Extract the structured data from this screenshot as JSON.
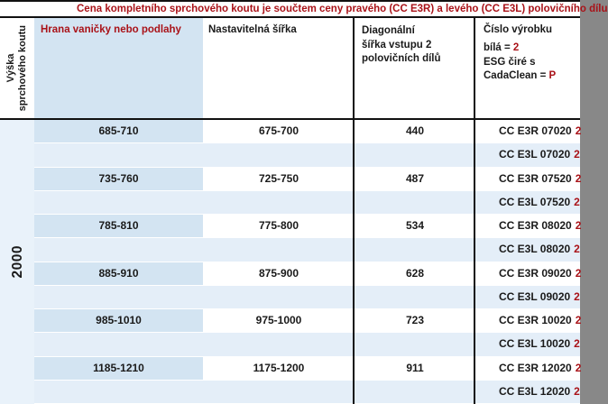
{
  "title": "Cena kompletního sprchového koutu je součtem ceny pravého (CC E3R) a levého (CC E3L) polovičního dílu",
  "header": {
    "height_label": "Výška\nsprchového koutu",
    "edge": "Hrana vaničky nebo podlahy",
    "width": "Nastavitelná šířka",
    "diagonal_lines": {
      "0": "Diagonální",
      "1": "šířka vstupu 2",
      "2": "polovičních dílů"
    },
    "product": "Číslo výrobku",
    "white_label": "bílá = ",
    "white_code": "2",
    "glass_line": "ESG čiré s",
    "glass_label": "CadaClean = ",
    "glass_code": "P"
  },
  "height_value": "2000",
  "code_suffix": "2",
  "rows": [
    {
      "edge": "685-710",
      "width": "675-700",
      "diagonal": "440",
      "code_r": "CC E3R 07020",
      "code_l": "CC E3L 07020"
    },
    {
      "edge": "735-760",
      "width": "725-750",
      "diagonal": "487",
      "code_r": "CC E3R 07520",
      "code_l": "CC E3L 07520"
    },
    {
      "edge": "785-810",
      "width": "775-800",
      "diagonal": "534",
      "code_r": "CC E3R 08020",
      "code_l": "CC E3L 08020"
    },
    {
      "edge": "885-910",
      "width": "875-900",
      "diagonal": "628",
      "code_r": "CC E3R 09020",
      "code_l": "CC E3L 09020"
    },
    {
      "edge": "985-1010",
      "width": "975-1000",
      "diagonal": "723",
      "code_r": "CC E3R 10020",
      "code_l": "CC E3L 10020"
    },
    {
      "edge": "1185-1210",
      "width": "1175-1200",
      "diagonal": "911",
      "code_r": "CC E3R 12020",
      "code_l": "CC E3L 12020"
    }
  ],
  "colors": {
    "accent_red": "#a91218",
    "col_blue": "#d3e4f2",
    "stripe_blue": "#e4eef8",
    "col1_blue": "#e9f2fa",
    "line_black": "#111111",
    "text_black": "#1a1a1a"
  }
}
